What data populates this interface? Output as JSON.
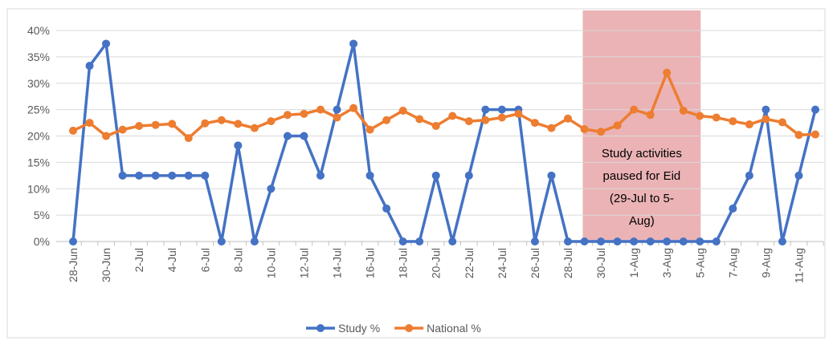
{
  "chart_data": {
    "type": "line",
    "categories": [
      "28-Jun",
      null,
      "30-Jun",
      null,
      "2-Jul",
      null,
      "4-Jul",
      null,
      "6-Jul",
      null,
      "8-Jul",
      null,
      "10-Jul",
      null,
      "12-Jul",
      null,
      "14-Jul",
      null,
      "16-Jul",
      null,
      "18-Jul",
      null,
      "20-Jul",
      null,
      "22-Jul",
      null,
      "24-Jul",
      null,
      "26-Jul",
      null,
      "28-Jul",
      null,
      "30-Jul",
      null,
      "1-Aug",
      null,
      "3-Aug",
      null,
      "5-Aug",
      null,
      "7-Aug",
      null,
      "9-Aug",
      null,
      "11-Aug",
      null
    ],
    "series": [
      {
        "name": "Study %",
        "color": "#4472c4",
        "values": [
          0,
          33.3,
          37.5,
          12.5,
          12.5,
          12.5,
          12.5,
          12.5,
          12.5,
          0,
          18.2,
          0,
          10,
          20,
          20,
          12.5,
          25,
          37.5,
          12.5,
          6.25,
          0,
          0,
          12.5,
          0,
          12.5,
          25,
          25,
          25,
          0,
          12.5,
          0,
          0,
          0,
          0,
          0,
          0,
          0,
          0,
          0,
          0,
          6.25,
          12.5,
          25,
          0,
          12.5,
          25
        ]
      },
      {
        "name": "National %",
        "color": "#ed7d31",
        "values": [
          21,
          22.5,
          20,
          21.2,
          21.9,
          22.1,
          22.3,
          19.6,
          22.4,
          23,
          22.3,
          21.5,
          22.8,
          24,
          24.2,
          25,
          23.5,
          25.3,
          21.2,
          23,
          24.8,
          23.2,
          21.9,
          23.8,
          22.8,
          23,
          23.5,
          24.2,
          22.5,
          21.5,
          23.3,
          21.3,
          20.8,
          22,
          25,
          24,
          32,
          24.8,
          23.8,
          23.5,
          22.8,
          22.2,
          23.2,
          22.6,
          20.2,
          20.3
        ]
      }
    ],
    "ylim": [
      0,
      40
    ],
    "yticks": [
      {
        "value": 0,
        "label": "0%"
      },
      {
        "value": 5,
        "label": "5%"
      },
      {
        "value": 10,
        "label": "10%"
      },
      {
        "value": 15,
        "label": "15%"
      },
      {
        "value": 20,
        "label": "20%"
      },
      {
        "value": 25,
        "label": "25%"
      },
      {
        "value": 30,
        "label": "30%"
      },
      {
        "value": 35,
        "label": "35%"
      },
      {
        "value": 40,
        "label": "40%"
      }
    ],
    "grid": true,
    "legend": "bottom",
    "annotation": {
      "lines": [
        "Study activities",
        "paused for Eid",
        "(29-Jul to 5-",
        "Aug)"
      ],
      "color": "#e8a6a8"
    }
  }
}
